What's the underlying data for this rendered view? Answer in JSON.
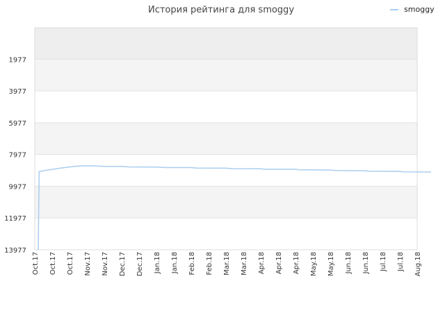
{
  "chart_data": {
    "type": "line",
    "title": "История рейтинга для smoggy",
    "xlabel": "",
    "ylabel": "",
    "y_inverted": true,
    "ylim": [
      0,
      13977
    ],
    "yticks": [
      1977,
      3977,
      5977,
      7977,
      9977,
      11977,
      13977
    ],
    "xticks": [
      "Oct.17",
      "Oct.17",
      "Oct.17",
      "Nov.17",
      "Nov.17",
      "Dec.17",
      "Dec.17",
      "Jan.18",
      "Jan.18",
      "Feb.18",
      "Feb.18",
      "Mar.18",
      "Mar.18",
      "Apr.18",
      "Apr.18",
      "Apr.18",
      "May.18",
      "May.18",
      "Jun.18",
      "Jun.18",
      "Jul.18",
      "Jul.18",
      "Aug.18"
    ],
    "grid": true,
    "legend_position": "top-right",
    "series": [
      {
        "name": "smoggy",
        "color": "#a9cdee",
        "points": [
          [
            0.2,
            13977
          ],
          [
            0.25,
            9050
          ],
          [
            0.6,
            8980
          ],
          [
            1.0,
            8920
          ],
          [
            1.4,
            8850
          ],
          [
            1.8,
            8790
          ],
          [
            2.2,
            8740
          ],
          [
            2.6,
            8700
          ],
          [
            3.0,
            8690
          ],
          [
            3.5,
            8700
          ],
          [
            4.0,
            8730
          ],
          [
            5.0,
            8730
          ],
          [
            5.4,
            8760
          ],
          [
            7.0,
            8770
          ],
          [
            7.5,
            8800
          ],
          [
            9.0,
            8800
          ],
          [
            9.3,
            8830
          ],
          [
            11.0,
            8840
          ],
          [
            11.3,
            8870
          ],
          [
            13.0,
            8880
          ],
          [
            13.2,
            8910
          ],
          [
            15.0,
            8910
          ],
          [
            15.2,
            8940
          ],
          [
            17.0,
            8960
          ],
          [
            17.3,
            8990
          ],
          [
            19.0,
            9000
          ],
          [
            19.2,
            9030
          ],
          [
            21.0,
            9040
          ],
          [
            21.2,
            9070
          ],
          [
            22.8,
            9080
          ]
        ]
      }
    ]
  }
}
